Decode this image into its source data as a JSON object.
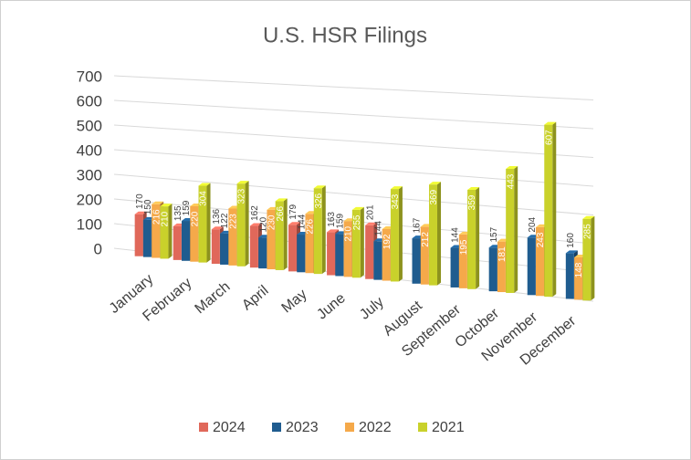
{
  "chart_data": {
    "type": "bar3d",
    "title": "U.S. HSR Filings",
    "categories": [
      "January",
      "February",
      "March",
      "April",
      "May",
      "June",
      "July",
      "August",
      "September",
      "October",
      "November",
      "December"
    ],
    "series": [
      {
        "name": "2024",
        "color": "#e0685a",
        "values": [
          170,
          135,
          136,
          162,
          179,
          163,
          201,
          null,
          null,
          null,
          null,
          null
        ]
      },
      {
        "name": "2023",
        "color": "#1f5c8f",
        "values": [
          150,
          159,
          122,
          120,
          144,
          159,
          144,
          167,
          144,
          157,
          204,
          160
        ]
      },
      {
        "name": "2022",
        "color": "#f5a94a",
        "values": [
          216,
          220,
          223,
          230,
          226,
          210,
          192,
          212,
          195,
          181,
          243,
          148
        ]
      },
      {
        "name": "2021",
        "color": "#c9d12b",
        "values": [
          210,
          304,
          323,
          266,
          326,
          255,
          343,
          369,
          359,
          443,
          607,
          285
        ]
      }
    ],
    "ylim": [
      0,
      700
    ],
    "yticks": [
      0,
      100,
      200,
      300,
      400,
      500,
      600,
      700
    ],
    "grid": true,
    "legend": "bottom"
  }
}
